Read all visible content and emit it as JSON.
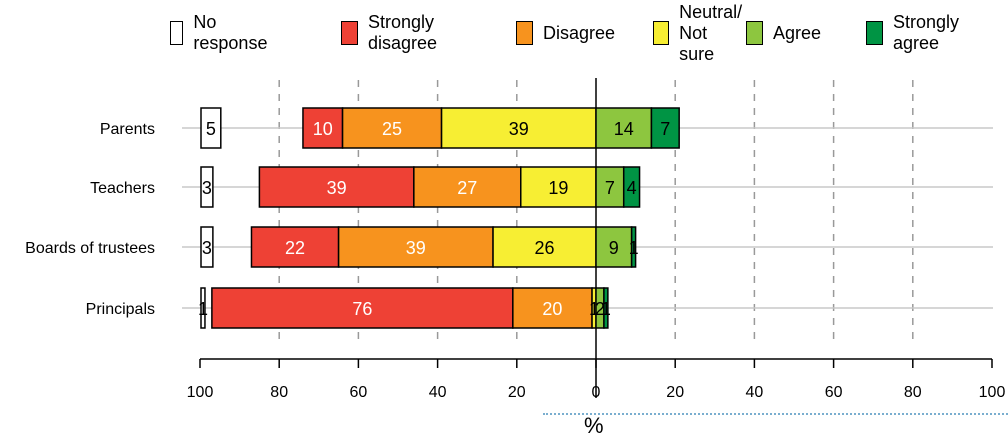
{
  "chart_data": {
    "type": "bar",
    "stacked": "diverging",
    "orientation": "horizontal",
    "categories": [
      "Parents",
      "Teachers",
      "Boards of trustees",
      "Principals"
    ],
    "series": [
      {
        "name": "No response",
        "color": "#ffffff",
        "values": [
          5,
          3,
          3,
          1
        ]
      },
      {
        "name": "Strongly\ndisagree",
        "color": "#ee4135",
        "values": [
          10,
          39,
          22,
          76
        ]
      },
      {
        "name": "Disagree",
        "color": "#f7931e",
        "values": [
          25,
          27,
          39,
          20
        ]
      },
      {
        "name": "Neutral/\nNot sure",
        "color": "#f7ee33",
        "values": [
          39,
          19,
          26,
          1
        ]
      },
      {
        "name": "Agree",
        "color": "#8dc63f",
        "values": [
          14,
          7,
          9,
          2
        ]
      },
      {
        "name": "Strongly\nagree",
        "color": "#009444",
        "values": [
          7,
          4,
          1,
          1
        ]
      }
    ],
    "xlabel": "%",
    "x_ticks": [
      "100",
      "80",
      "60",
      "40",
      "20",
      "0",
      "20",
      "40",
      "60",
      "80",
      "100"
    ],
    "xlim": [
      -100,
      100
    ],
    "grid": true,
    "legend_position": "top"
  }
}
